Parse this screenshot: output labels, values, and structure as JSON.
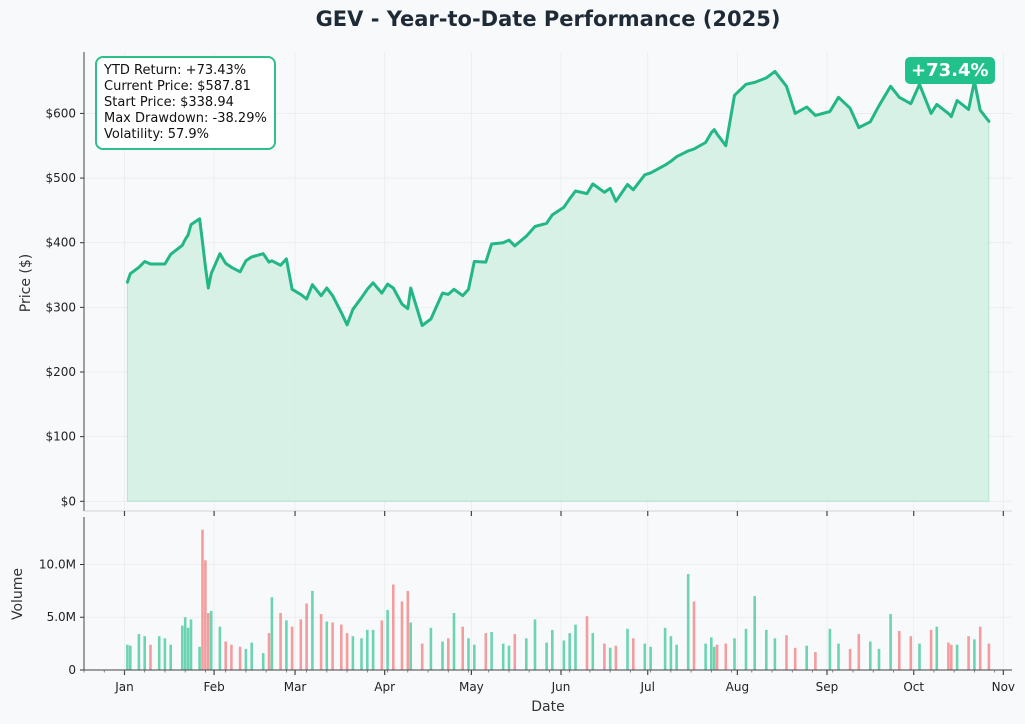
{
  "page": {
    "title": "GEV - Year-to-Date Performance (2025)"
  },
  "stats": {
    "ytd_return": "YTD Return: +73.43%",
    "current_price": "Current Price: $587.81",
    "start_price": "Start Price: $338.94",
    "max_drawdown": "Max Drawdown: -38.29%",
    "volatility": "Volatility: 57.9%"
  },
  "badge": {
    "text": "+73.4%"
  },
  "colors": {
    "up": "#22c08a",
    "down": "#ef6b6b",
    "line": "#22b785",
    "fill": "#d3efe4"
  },
  "chart_data": [
    {
      "type": "area",
      "title": "GEV - Year-to-Date Performance (2025)",
      "ylabel": "Price ($)",
      "ylim": [
        -15,
        695
      ],
      "yticks": [
        0,
        100,
        200,
        300,
        400,
        500,
        600
      ],
      "ytick_labels": [
        "$0",
        "$100",
        "$200",
        "$300",
        "$400",
        "$500",
        "$600"
      ],
      "xlim": [
        "2024-12-18",
        "2025-11-04"
      ],
      "grid": true,
      "series": [
        {
          "x": [
            "2025-01-02",
            "2025-01-03",
            "2025-01-06",
            "2025-01-08",
            "2025-01-10",
            "2025-01-13",
            "2025-01-15",
            "2025-01-17",
            "2025-01-21",
            "2025-01-22",
            "2025-01-23",
            "2025-01-24",
            "2025-01-27",
            "2025-01-28",
            "2025-01-29",
            "2025-01-30",
            "2025-01-31",
            "2025-02-03",
            "2025-02-05",
            "2025-02-07",
            "2025-02-10",
            "2025-02-12",
            "2025-02-14",
            "2025-02-18",
            "2025-02-20",
            "2025-02-21",
            "2025-02-24",
            "2025-02-26",
            "2025-02-28",
            "2025-03-03",
            "2025-03-05",
            "2025-03-07",
            "2025-03-10",
            "2025-03-12",
            "2025-03-14",
            "2025-03-17",
            "2025-03-19",
            "2025-03-21",
            "2025-03-24",
            "2025-03-26",
            "2025-03-28",
            "2025-03-31",
            "2025-04-02",
            "2025-04-04",
            "2025-04-07",
            "2025-04-09",
            "2025-04-10",
            "2025-04-14",
            "2025-04-17",
            "2025-04-21",
            "2025-04-23",
            "2025-04-25",
            "2025-04-28",
            "2025-04-30",
            "2025-05-02",
            "2025-05-06",
            "2025-05-08",
            "2025-05-12",
            "2025-05-14",
            "2025-05-16",
            "2025-05-20",
            "2025-05-23",
            "2025-05-27",
            "2025-05-29",
            "2025-06-02",
            "2025-06-04",
            "2025-06-06",
            "2025-06-10",
            "2025-06-12",
            "2025-06-16",
            "2025-06-18",
            "2025-06-20",
            "2025-06-24",
            "2025-06-26",
            "2025-06-30",
            "2025-07-02",
            "2025-07-07",
            "2025-07-09",
            "2025-07-11",
            "2025-07-15",
            "2025-07-17",
            "2025-07-21",
            "2025-07-23",
            "2025-07-24",
            "2025-07-25",
            "2025-07-28",
            "2025-07-31",
            "2025-08-04",
            "2025-08-07",
            "2025-08-11",
            "2025-08-14",
            "2025-08-18",
            "2025-08-21",
            "2025-08-25",
            "2025-08-28",
            "2025-09-02",
            "2025-09-05",
            "2025-09-09",
            "2025-09-12",
            "2025-09-16",
            "2025-09-19",
            "2025-09-23",
            "2025-09-26",
            "2025-09-30",
            "2025-10-03",
            "2025-10-07",
            "2025-10-09",
            "2025-10-13",
            "2025-10-14",
            "2025-10-16",
            "2025-10-20",
            "2025-10-22",
            "2025-10-24",
            "2025-10-27"
          ],
          "values": [
            338.94,
            352,
            362,
            371,
            367,
            367,
            367,
            382,
            396,
            405,
            412,
            428,
            437,
            401,
            363,
            330,
            352,
            383,
            368,
            362,
            355,
            372,
            378,
            383,
            370,
            372,
            365,
            375,
            328,
            320,
            313,
            335,
            318,
            330,
            318,
            292,
            273,
            297,
            315,
            328,
            338,
            322,
            336,
            330,
            305,
            298,
            330,
            272,
            282,
            322,
            320,
            328,
            318,
            328,
            371,
            370,
            398,
            400,
            404,
            395,
            410,
            425,
            430,
            443,
            455,
            468,
            480,
            476,
            491,
            478,
            484,
            464,
            490,
            482,
            505,
            508,
            520,
            526,
            533,
            542,
            545,
            555,
            570,
            575,
            568,
            550,
            628,
            645,
            648,
            655,
            665,
            642,
            600,
            610,
            597,
            603,
            625,
            608,
            578,
            587,
            612,
            642,
            625,
            615,
            645,
            600,
            614,
            600,
            595,
            620,
            606,
            650,
            605,
            587.81
          ]
        }
      ]
    },
    {
      "type": "bar",
      "xlabel": "Date",
      "ylabel": "Volume",
      "ylim": [
        0,
        14500000
      ],
      "yticks": [
        0,
        5000000,
        10000000
      ],
      "ytick_labels": [
        "0",
        "5.0M",
        "10.0M"
      ],
      "xtick_labels": [
        "Jan",
        "Feb",
        "Mar",
        "Apr",
        "May",
        "Jun",
        "Jul",
        "Aug",
        "Sep",
        "Oct",
        "Nov"
      ],
      "xtick_dates": [
        "2025-01-01",
        "2025-02-01",
        "2025-03-01",
        "2025-04-01",
        "2025-05-01",
        "2025-06-01",
        "2025-07-01",
        "2025-08-01",
        "2025-09-01",
        "2025-10-01",
        "2025-11-01"
      ],
      "grid": true,
      "series": [
        {
          "x": [
            "2025-01-02",
            "2025-01-03",
            "2025-01-06",
            "2025-01-08",
            "2025-01-10",
            "2025-01-13",
            "2025-01-15",
            "2025-01-17",
            "2025-01-21",
            "2025-01-22",
            "2025-01-23",
            "2025-01-24",
            "2025-01-27",
            "2025-01-28",
            "2025-01-29",
            "2025-01-30",
            "2025-01-31",
            "2025-02-03",
            "2025-02-05",
            "2025-02-07",
            "2025-02-10",
            "2025-02-12",
            "2025-02-14",
            "2025-02-18",
            "2025-02-20",
            "2025-02-21",
            "2025-02-24",
            "2025-02-26",
            "2025-02-28",
            "2025-03-03",
            "2025-03-05",
            "2025-03-07",
            "2025-03-10",
            "2025-03-12",
            "2025-03-14",
            "2025-03-17",
            "2025-03-19",
            "2025-03-21",
            "2025-03-24",
            "2025-03-26",
            "2025-03-28",
            "2025-03-31",
            "2025-04-02",
            "2025-04-04",
            "2025-04-07",
            "2025-04-09",
            "2025-04-10",
            "2025-04-14",
            "2025-04-17",
            "2025-04-21",
            "2025-04-23",
            "2025-04-25",
            "2025-04-28",
            "2025-04-30",
            "2025-05-02",
            "2025-05-06",
            "2025-05-08",
            "2025-05-12",
            "2025-05-14",
            "2025-05-16",
            "2025-05-20",
            "2025-05-23",
            "2025-05-27",
            "2025-05-29",
            "2025-06-02",
            "2025-06-04",
            "2025-06-06",
            "2025-06-10",
            "2025-06-12",
            "2025-06-16",
            "2025-06-18",
            "2025-06-20",
            "2025-06-24",
            "2025-06-26",
            "2025-06-30",
            "2025-07-02",
            "2025-07-07",
            "2025-07-09",
            "2025-07-11",
            "2025-07-15",
            "2025-07-17",
            "2025-07-21",
            "2025-07-23",
            "2025-07-24",
            "2025-07-25",
            "2025-07-28",
            "2025-07-31",
            "2025-08-04",
            "2025-08-07",
            "2025-08-11",
            "2025-08-14",
            "2025-08-18",
            "2025-08-21",
            "2025-08-25",
            "2025-08-28",
            "2025-09-02",
            "2025-09-05",
            "2025-09-09",
            "2025-09-12",
            "2025-09-16",
            "2025-09-19",
            "2025-09-23",
            "2025-09-26",
            "2025-09-30",
            "2025-10-03",
            "2025-10-07",
            "2025-10-09",
            "2025-10-13",
            "2025-10-14",
            "2025-10-16",
            "2025-10-20",
            "2025-10-22",
            "2025-10-24",
            "2025-10-27"
          ],
          "values": [
            2400000,
            2300000,
            3400000,
            3200000,
            2400000,
            3200000,
            3000000,
            2400000,
            4200000,
            5000000,
            4000000,
            4800000,
            2200000,
            13300000,
            10400000,
            5400000,
            5600000,
            4100000,
            2700000,
            2400000,
            2200000,
            2000000,
            2600000,
            1600000,
            3500000,
            6900000,
            5400000,
            4700000,
            4100000,
            4800000,
            6300000,
            7500000,
            5300000,
            4600000,
            4500000,
            4300000,
            3500000,
            3200000,
            3000000,
            3800000,
            3800000,
            4700000,
            5700000,
            8100000,
            6500000,
            7500000,
            4500000,
            2500000,
            4000000,
            2700000,
            3000000,
            5400000,
            4100000,
            3000000,
            2400000,
            3500000,
            3600000,
            2500000,
            2300000,
            3400000,
            3000000,
            4800000,
            2600000,
            3800000,
            2800000,
            3500000,
            4300000,
            5100000,
            3500000,
            2500000,
            2100000,
            2300000,
            3900000,
            3000000,
            2500000,
            2200000,
            4000000,
            3200000,
            2400000,
            9100000,
            6500000,
            2500000,
            3100000,
            2200000,
            2400000,
            2500000,
            3000000,
            3900000,
            7000000,
            3800000,
            3000000,
            3300000,
            2100000,
            2300000,
            1700000,
            3900000,
            2500000,
            2000000,
            3400000,
            2700000,
            2000000,
            5300000,
            3700000,
            3200000,
            2500000,
            3800000,
            4100000,
            2600000,
            2400000,
            2400000,
            3200000,
            2900000,
            4100000,
            2500000
          ],
          "up": [
            true,
            true,
            true,
            true,
            false,
            true,
            true,
            true,
            true,
            true,
            true,
            true,
            true,
            false,
            false,
            false,
            true,
            true,
            false,
            false,
            false,
            true,
            true,
            true,
            false,
            true,
            false,
            true,
            false,
            false,
            false,
            true,
            false,
            true,
            false,
            false,
            false,
            true,
            true,
            true,
            true,
            false,
            true,
            false,
            false,
            false,
            true,
            false,
            true,
            true,
            false,
            true,
            false,
            true,
            true,
            false,
            true,
            true,
            true,
            false,
            true,
            true,
            true,
            true,
            true,
            true,
            true,
            false,
            true,
            false,
            true,
            false,
            true,
            false,
            true,
            true,
            true,
            true,
            true,
            true,
            false,
            true,
            true,
            true,
            false,
            false,
            true,
            true,
            true,
            true,
            true,
            false,
            false,
            true,
            false,
            true,
            true,
            false,
            false,
            true,
            true,
            true,
            false,
            false,
            true,
            false,
            true,
            false,
            false,
            true,
            false,
            true,
            false,
            false
          ]
        }
      ]
    }
  ]
}
